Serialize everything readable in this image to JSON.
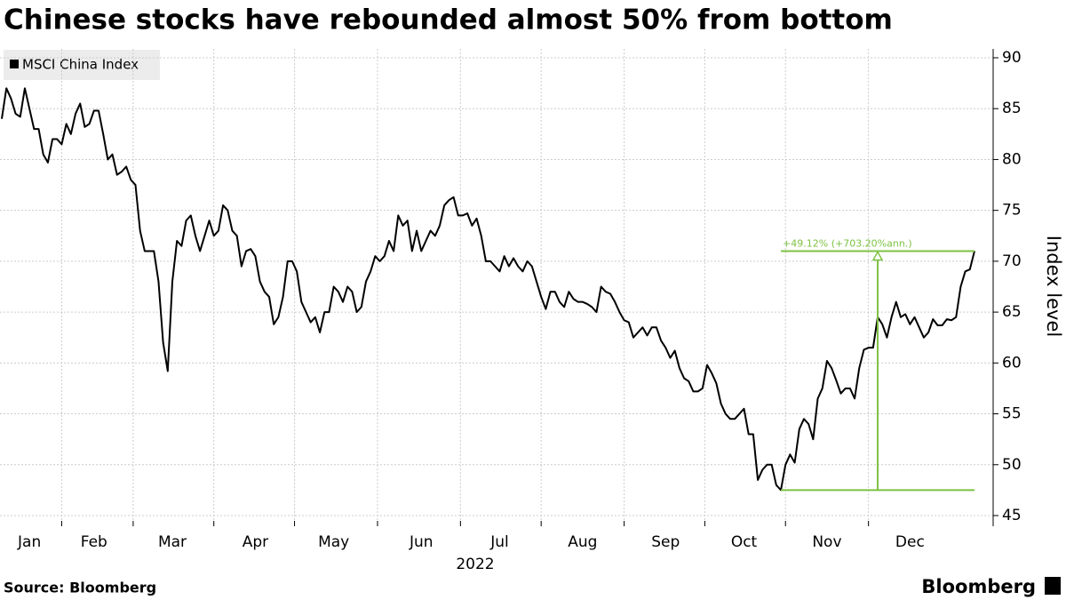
{
  "chart_data": {
    "type": "line",
    "title": "Chinese stocks have rebounded almost 50% from bottom",
    "x_label": "2022",
    "y_label": "Index level",
    "source": "Source: Bloomberg",
    "brand": "Bloomberg",
    "annotation": "+49.12% (+703.20%ann.)",
    "annotation_color": "#7dc242",
    "ylim": [
      45,
      90
    ],
    "yticks": [
      45,
      50,
      55,
      60,
      65,
      70,
      75,
      80,
      85,
      90
    ],
    "grid": true,
    "categories": [
      null,
      null,
      null,
      null,
      null,
      null,
      "Jan",
      null,
      null,
      null,
      null,
      null,
      null,
      null,
      null,
      null,
      null,
      null,
      null,
      null,
      "Feb",
      null,
      null,
      null,
      null,
      null,
      null,
      null,
      null,
      null,
      null,
      null,
      null,
      null,
      null,
      null,
      null,
      "Mar",
      null,
      null,
      null,
      null,
      null,
      null,
      null,
      null,
      null,
      null,
      null,
      null,
      null,
      null,
      null,
      null,
      null,
      "Apr",
      null,
      null,
      null,
      null,
      null,
      null,
      null,
      null,
      null,
      null,
      null,
      null,
      null,
      null,
      null,
      null,
      "May",
      null,
      null,
      null,
      null,
      null,
      null,
      null,
      null,
      null,
      null,
      null,
      null,
      null,
      null,
      null,
      null,
      null,
      null,
      "Jun",
      null,
      null,
      null,
      null,
      null,
      null,
      null,
      null,
      null,
      null,
      null,
      null,
      null,
      null,
      null,
      null,
      "Jul",
      null,
      null,
      null,
      null,
      null,
      null,
      null,
      null,
      null,
      null,
      null,
      null,
      null,
      null,
      null,
      null,
      null,
      "Aug",
      null,
      null,
      null,
      null,
      null,
      null,
      null,
      null,
      null,
      null,
      null,
      null,
      null,
      null,
      null,
      null,
      null,
      "Sep",
      null,
      null,
      null,
      null,
      null,
      null,
      null,
      null,
      null,
      null,
      null,
      null,
      null,
      null,
      null,
      null,
      "Oct",
      null,
      null,
      null,
      null,
      null,
      null,
      null,
      null,
      null,
      null,
      null,
      null,
      null,
      null,
      null,
      null,
      null,
      "Nov",
      null,
      null,
      null,
      null,
      null,
      null,
      null,
      null,
      null,
      null,
      null,
      null,
      null,
      null,
      null,
      null,
      null,
      "Dec",
      null,
      null,
      null,
      null,
      null,
      null,
      null,
      null,
      null,
      null,
      null,
      null,
      null,
      null
    ],
    "series": [
      {
        "name": "MSCI China Index",
        "color": "#000000",
        "values": [
          84,
          87,
          86,
          84.5,
          84.2,
          87,
          85,
          83,
          83,
          80.5,
          79.7,
          82,
          82,
          81.5,
          83.5,
          82.5,
          84.5,
          85.5,
          83.2,
          83.5,
          84.8,
          84.8,
          82.5,
          80,
          80.5,
          78.5,
          78.8,
          79.3,
          78,
          77.5,
          73,
          71,
          71,
          71,
          68,
          62,
          59.2,
          68,
          72,
          71.5,
          74,
          74.5,
          72.5,
          71,
          72.5,
          74,
          72.5,
          73,
          75.5,
          75,
          73,
          72.5,
          69.5,
          71,
          71.2,
          70.5,
          68,
          67,
          66.5,
          63.8,
          64.5,
          66.5,
          70,
          70,
          69,
          66,
          65,
          64,
          64.5,
          63,
          65,
          65,
          67.5,
          67,
          66,
          67.5,
          67,
          65,
          65.5,
          68,
          69,
          70.5,
          70,
          70.5,
          72,
          71,
          74.5,
          73.5,
          74,
          71,
          73,
          71,
          72,
          73,
          72.5,
          73.5,
          75.5,
          76,
          76.3,
          74.5,
          74.5,
          74.7,
          73.5,
          74.2,
          72.5,
          70,
          70,
          69.5,
          69,
          70.5,
          69.5,
          70.3,
          69.5,
          69,
          70,
          69.5,
          68,
          66.5,
          65.3,
          67,
          67,
          66,
          65.5,
          67,
          66.3,
          66,
          66,
          65.8,
          65.5,
          65,
          67.5,
          67,
          66.8,
          66,
          65,
          64.2,
          64,
          62.5,
          63,
          63.5,
          62.7,
          63.5,
          63.5,
          62.2,
          61.5,
          60.5,
          61.2,
          59.5,
          58.5,
          58.2,
          57.2,
          57.2,
          57.5,
          59.8,
          59,
          58,
          56,
          55,
          54.5,
          54.5,
          55,
          55.5,
          53,
          53,
          48.5,
          49.5,
          50,
          50,
          48,
          47.5,
          50,
          51,
          50.2,
          53.5,
          54.5,
          54,
          52.5,
          56.5,
          57.5,
          60.2,
          59.5,
          58.3,
          57,
          57.5,
          57.5,
          56.5,
          59.5,
          61.3,
          61.5,
          61.5,
          64.5,
          63.8,
          62.5,
          64.5,
          66,
          64.5,
          64.8,
          63.8,
          64.5,
          63.5,
          62.5,
          63,
          64.3,
          63.7,
          63.7,
          64.3,
          64.2,
          64.5,
          67.5,
          69,
          69.2,
          71
        ]
      }
    ]
  }
}
